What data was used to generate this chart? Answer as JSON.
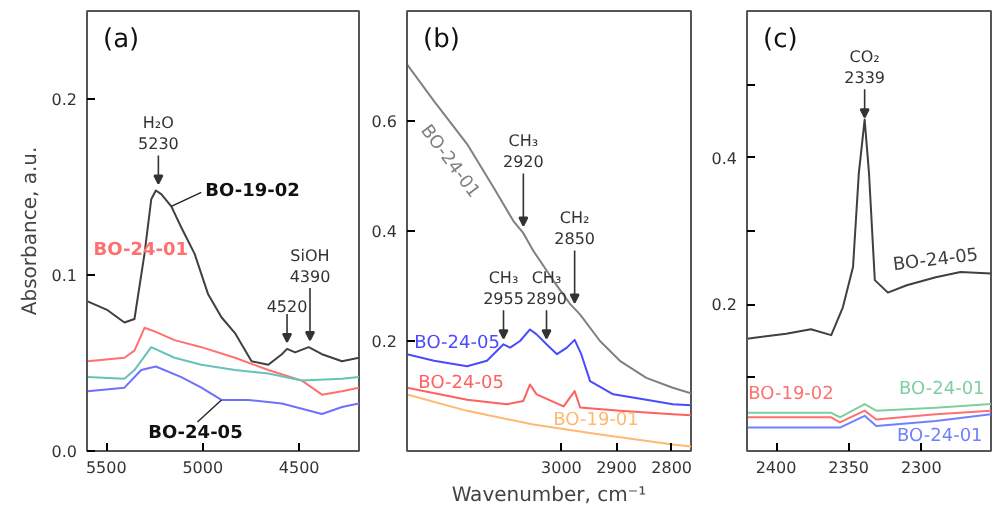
{
  "chart_data": [
    {
      "type": "line",
      "title": "(a)",
      "ylabel": "Absorbance, a.u.",
      "xlim": [
        5600,
        4190
      ],
      "ylim": [
        0,
        0.25
      ],
      "xticks": [
        5500,
        5000,
        4500
      ],
      "yticks": [
        {
          "value": 0,
          "label": "0.0"
        },
        0.1,
        0.2
      ],
      "series": [
        {
          "name": "BO-19-02",
          "color": "#404040",
          "x": [
            5597,
            5493,
            5406,
            5354,
            5302,
            5267,
            5243,
            5215,
            5163,
            5111,
            5042,
            4972,
            4903,
            4833,
            4747,
            4660,
            4590,
            4563,
            4521,
            4451,
            4382,
            4278,
            4190
          ],
          "values": [
            0.085,
            0.08,
            0.073,
            0.075,
            0.112,
            0.143,
            0.148,
            0.146,
            0.139,
            0.127,
            0.112,
            0.089,
            0.076,
            0.067,
            0.051,
            0.049,
            0.055,
            0.058,
            0.056,
            0.059,
            0.055,
            0.051,
            0.053
          ]
        },
        {
          "name": "BO-24-01",
          "color": "#ff7070",
          "x": [
            5597,
            5406,
            5354,
            5302,
            5250,
            5146,
            5007,
            4833,
            4660,
            4486,
            4382,
            4278,
            4190
          ],
          "values": [
            0.051,
            0.053,
            0.057,
            0.07,
            0.068,
            0.063,
            0.059,
            0.053,
            0.046,
            0.04,
            0.032,
            0.034,
            0.036
          ]
        },
        {
          "color": "#66c2b8",
          "x": [
            5597,
            5406,
            5354,
            5267,
            5146,
            5007,
            4833,
            4660,
            4486,
            4278,
            4190
          ],
          "values": [
            0.042,
            0.041,
            0.046,
            0.059,
            0.053,
            0.049,
            0.046,
            0.044,
            0.04,
            0.041,
            0.042
          ]
        },
        {
          "name": "BO-24-05",
          "color": "#7070ff",
          "x": [
            5597,
            5406,
            5319,
            5243,
            5111,
            5007,
            4903,
            4764,
            4590,
            4382,
            4278,
            4190
          ],
          "values": [
            0.034,
            0.036,
            0.046,
            0.048,
            0.042,
            0.036,
            0.029,
            0.029,
            0.027,
            0.021,
            0.025,
            0.027
          ]
        }
      ],
      "annotations": [
        {
          "text": "H₂O\n5230",
          "x": 5230,
          "y": 0.152
        },
        {
          "text": "SiOH\n4390",
          "x": 4444,
          "y": 0.063
        },
        {
          "text": "4520",
          "x": 4563,
          "y": 0.062
        }
      ]
    },
    {
      "type": "line",
      "title": "(b)",
      "xlabel": "Wavenumber, cm⁻¹",
      "xlim": [
        3280,
        2765
      ],
      "ylim": [
        0,
        0.8
      ],
      "xticks": [
        3000,
        2900,
        2800
      ],
      "yticks": [
        0.2,
        0.4,
        0.6
      ],
      "series": [
        {
          "name": "BO-24-01",
          "color": "#808080",
          "x": [
            3280,
            3231,
            3171,
            3123,
            3087,
            3069,
            3051,
            3014,
            2984,
            2966,
            2930,
            2894,
            2846,
            2798,
            2765
          ],
          "values": [
            0.703,
            0.636,
            0.558,
            0.479,
            0.418,
            0.396,
            0.364,
            0.309,
            0.267,
            0.248,
            0.2,
            0.164,
            0.133,
            0.115,
            0.105
          ]
        },
        {
          "name": "BO-24-05",
          "color": "#4a4aff",
          "x": [
            3280,
            3231,
            3171,
            3135,
            3105,
            3093,
            3075,
            3057,
            3045,
            3027,
            3008,
            2990,
            2976,
            2964,
            2948,
            2906,
            2846,
            2798,
            2765
          ],
          "values": [
            0.176,
            0.164,
            0.154,
            0.164,
            0.194,
            0.188,
            0.2,
            0.221,
            0.212,
            0.194,
            0.176,
            0.188,
            0.202,
            0.176,
            0.127,
            0.103,
            0.093,
            0.085,
            0.083
          ]
        },
        {
          "name": "BO-24-05",
          "color": "#ff6060",
          "x": [
            3280,
            3171,
            3099,
            3069,
            3057,
            3045,
            2996,
            2976,
            2966,
            2894,
            2798,
            2765
          ],
          "values": [
            0.115,
            0.093,
            0.085,
            0.091,
            0.121,
            0.103,
            0.081,
            0.109,
            0.079,
            0.073,
            0.067,
            0.065
          ]
        },
        {
          "name": "BO-19-01",
          "color": "#ffb870",
          "x": [
            3280,
            3171,
            3051,
            2930,
            2798,
            2765
          ],
          "values": [
            0.103,
            0.073,
            0.048,
            0.03,
            0.012,
            0.008
          ]
        }
      ],
      "annotations": [
        {
          "text": "CH₃\n2955",
          "x": 3105,
          "y": 0.205
        },
        {
          "text": "CH₃\n2920",
          "x": 3069,
          "y": 0.41
        },
        {
          "text": "CH₃\n2890",
          "x": 3027,
          "y": 0.205
        },
        {
          "text": "CH₂\n2850",
          "x": 2976,
          "y": 0.27
        }
      ]
    },
    {
      "type": "line",
      "title": "(c)",
      "xlim": [
        2420,
        2252
      ],
      "ylim": [
        0,
        0.6
      ],
      "xticks": [
        2400,
        2350,
        2300
      ],
      "yticks": [
        {
          "value": 0.1,
          "label": null
        },
        0.2,
        {
          "value": 0.3,
          "label": null
        },
        0.4,
        {
          "value": 0.5,
          "label": null
        }
      ],
      "series": [
        {
          "name": "BO-24-05",
          "color": "#404040",
          "x": [
            2420,
            2393,
            2376,
            2362,
            2354,
            2347,
            2343,
            2339,
            2336,
            2332,
            2323,
            2310,
            2290,
            2273,
            2252
          ],
          "values": [
            0.153,
            0.16,
            0.166,
            0.158,
            0.196,
            0.251,
            0.379,
            0.452,
            0.379,
            0.233,
            0.216,
            0.226,
            0.237,
            0.244,
            0.242
          ]
        },
        {
          "name": "BO-24-01",
          "color": "#7fcfa0",
          "x": [
            2420,
            2362,
            2356,
            2339,
            2331,
            2290,
            2252
          ],
          "values": [
            0.052,
            0.052,
            0.046,
            0.064,
            0.055,
            0.059,
            0.064
          ]
        },
        {
          "name": "BO-19-02",
          "color": "#ff7070",
          "x": [
            2420,
            2362,
            2356,
            2339,
            2331,
            2290,
            2252
          ],
          "values": [
            0.046,
            0.046,
            0.039,
            0.055,
            0.043,
            0.05,
            0.055
          ]
        },
        {
          "name": "BO-24-01",
          "color": "#7080ff",
          "x": [
            2420,
            2362,
            2356,
            2339,
            2331,
            2290,
            2252
          ],
          "values": [
            0.032,
            0.032,
            0.032,
            0.048,
            0.034,
            0.041,
            0.05
          ]
        }
      ],
      "annotations": [
        {
          "text": "CO₂\n2339",
          "x": 2339,
          "y": 0.455
        }
      ]
    }
  ]
}
